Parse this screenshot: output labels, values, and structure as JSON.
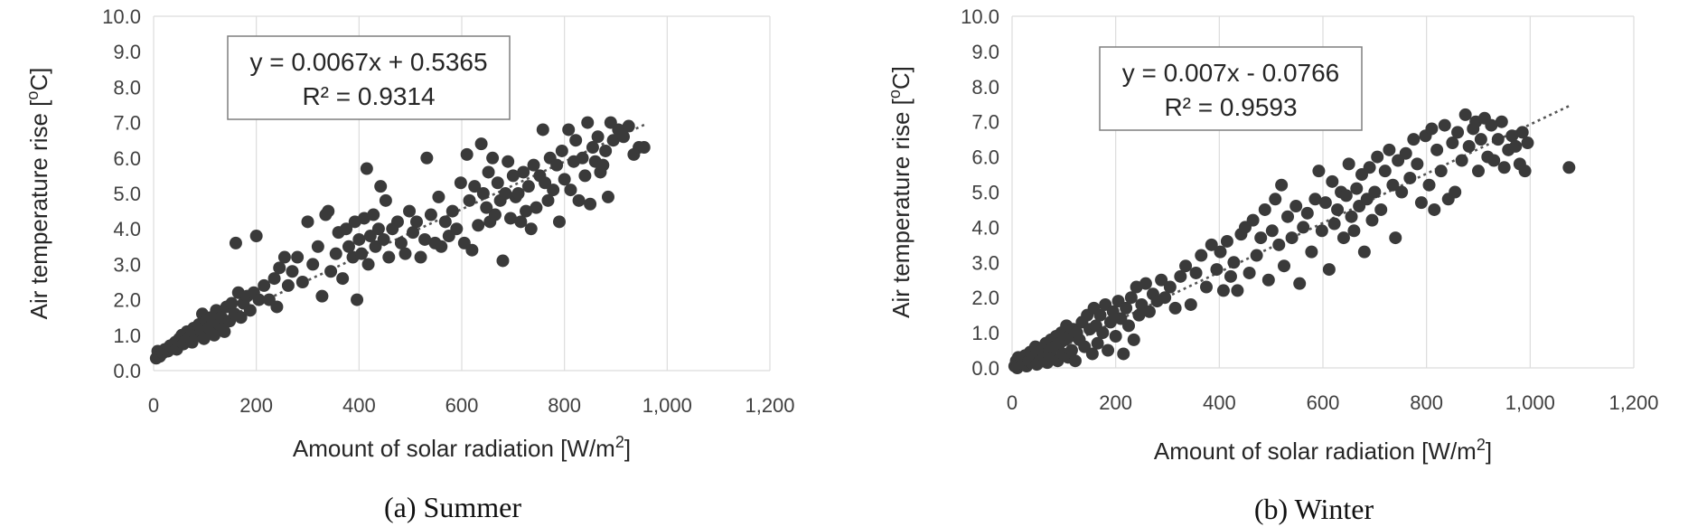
{
  "chart_data": [
    {
      "type": "scatter",
      "caption": "(a) Summer",
      "xlabel": "Amount of solar radiation [W/m2]",
      "ylabel": "Air temperature rise [oC]",
      "xlim": [
        0,
        1200
      ],
      "ylim": [
        0,
        10
      ],
      "xticks": [
        "0",
        "200",
        "400",
        "600",
        "800",
        "1,000",
        "1,200"
      ],
      "yticks": [
        "0.0",
        "1.0",
        "2.0",
        "3.0",
        "4.0",
        "5.0",
        "6.0",
        "7.0",
        "8.0",
        "9.0",
        "10.0"
      ],
      "grid": "vertical",
      "trendline": {
        "type": "linear",
        "slope": 0.0067,
        "intercept": 0.5365,
        "x_range": [
          0,
          960
        ],
        "style": "dotted"
      },
      "equation": "y = 0.0067x + 0.5365",
      "r_squared": "R² = 0.9314",
      "points": [
        [
          5,
          0.35
        ],
        [
          8,
          0.55
        ],
        [
          12,
          0.4
        ],
        [
          18,
          0.5
        ],
        [
          22,
          0.6
        ],
        [
          28,
          0.55
        ],
        [
          32,
          0.7
        ],
        [
          38,
          0.65
        ],
        [
          42,
          0.8
        ],
        [
          45,
          0.6
        ],
        [
          50,
          0.9
        ],
        [
          55,
          1.0
        ],
        [
          58,
          0.75
        ],
        [
          62,
          0.85
        ],
        [
          65,
          1.1
        ],
        [
          70,
          0.95
        ],
        [
          75,
          0.8
        ],
        [
          78,
          1.2
        ],
        [
          82,
          1.0
        ],
        [
          88,
          1.3
        ],
        [
          92,
          1.1
        ],
        [
          95,
          1.6
        ],
        [
          98,
          0.9
        ],
        [
          102,
          1.4
        ],
        [
          108,
          1.2
        ],
        [
          112,
          1.5
        ],
        [
          118,
          1.0
        ],
        [
          122,
          1.7
        ],
        [
          128,
          1.3
        ],
        [
          132,
          1.5
        ],
        [
          138,
          1.1
        ],
        [
          142,
          1.8
        ],
        [
          148,
          1.4
        ],
        [
          152,
          1.9
        ],
        [
          158,
          1.6
        ],
        [
          160,
          3.6
        ],
        [
          165,
          2.2
        ],
        [
          170,
          1.5
        ],
        [
          175,
          1.9
        ],
        [
          182,
          2.1
        ],
        [
          188,
          1.7
        ],
        [
          195,
          2.2
        ],
        [
          200,
          3.8
        ],
        [
          205,
          2.0
        ],
        [
          215,
          2.4
        ],
        [
          225,
          2.0
        ],
        [
          235,
          2.6
        ],
        [
          240,
          1.8
        ],
        [
          245,
          2.9
        ],
        [
          255,
          3.2
        ],
        [
          262,
          2.4
        ],
        [
          270,
          2.8
        ],
        [
          280,
          3.2
        ],
        [
          290,
          2.5
        ],
        [
          300,
          4.2
        ],
        [
          310,
          3.0
        ],
        [
          320,
          3.5
        ],
        [
          328,
          2.1
        ],
        [
          335,
          4.4
        ],
        [
          340,
          4.5
        ],
        [
          345,
          2.8
        ],
        [
          355,
          3.3
        ],
        [
          360,
          3.9
        ],
        [
          368,
          2.6
        ],
        [
          375,
          4.0
        ],
        [
          380,
          3.5
        ],
        [
          388,
          3.2
        ],
        [
          392,
          4.2
        ],
        [
          396,
          2.0
        ],
        [
          400,
          3.7
        ],
        [
          405,
          3.3
        ],
        [
          410,
          4.3
        ],
        [
          415,
          5.7
        ],
        [
          418,
          3.0
        ],
        [
          422,
          3.8
        ],
        [
          428,
          4.4
        ],
        [
          432,
          3.5
        ],
        [
          438,
          4.0
        ],
        [
          442,
          5.2
        ],
        [
          448,
          3.7
        ],
        [
          452,
          4.8
        ],
        [
          458,
          3.2
        ],
        [
          465,
          4.0
        ],
        [
          475,
          4.2
        ],
        [
          482,
          3.6
        ],
        [
          490,
          3.3
        ],
        [
          498,
          4.5
        ],
        [
          505,
          3.9
        ],
        [
          512,
          4.2
        ],
        [
          520,
          3.2
        ],
        [
          528,
          3.7
        ],
        [
          532,
          6.0
        ],
        [
          540,
          4.4
        ],
        [
          548,
          3.6
        ],
        [
          555,
          4.9
        ],
        [
          560,
          3.5
        ],
        [
          568,
          4.2
        ],
        [
          575,
          3.8
        ],
        [
          582,
          4.5
        ],
        [
          590,
          4.0
        ],
        [
          598,
          5.3
        ],
        [
          605,
          3.6
        ],
        [
          610,
          6.1
        ],
        [
          615,
          4.8
        ],
        [
          620,
          3.4
        ],
        [
          625,
          5.2
        ],
        [
          632,
          4.1
        ],
        [
          638,
          6.4
        ],
        [
          642,
          5.0
        ],
        [
          648,
          4.6
        ],
        [
          652,
          5.6
        ],
        [
          655,
          4.2
        ],
        [
          660,
          6.0
        ],
        [
          665,
          4.4
        ],
        [
          670,
          5.3
        ],
        [
          675,
          4.8
        ],
        [
          680,
          3.1
        ],
        [
          685,
          5.0
        ],
        [
          690,
          5.9
        ],
        [
          695,
          4.3
        ],
        [
          700,
          5.5
        ],
        [
          705,
          4.9
        ],
        [
          710,
          5.0
        ],
        [
          715,
          4.2
        ],
        [
          720,
          5.6
        ],
        [
          725,
          4.5
        ],
        [
          730,
          5.2
        ],
        [
          735,
          4.0
        ],
        [
          740,
          5.8
        ],
        [
          745,
          4.6
        ],
        [
          752,
          5.5
        ],
        [
          758,
          6.8
        ],
        [
          762,
          5.3
        ],
        [
          768,
          4.8
        ],
        [
          772,
          6.0
        ],
        [
          778,
          5.1
        ],
        [
          785,
          5.8
        ],
        [
          790,
          4.2
        ],
        [
          795,
          6.2
        ],
        [
          800,
          5.4
        ],
        [
          808,
          6.8
        ],
        [
          812,
          5.1
        ],
        [
          818,
          5.9
        ],
        [
          822,
          6.5
        ],
        [
          828,
          4.8
        ],
        [
          835,
          6.0
        ],
        [
          840,
          5.5
        ],
        [
          845,
          7.0
        ],
        [
          850,
          4.7
        ],
        [
          855,
          6.3
        ],
        [
          860,
          5.9
        ],
        [
          865,
          6.6
        ],
        [
          870,
          5.6
        ],
        [
          875,
          5.8
        ],
        [
          880,
          6.2
        ],
        [
          885,
          4.9
        ],
        [
          890,
          7.0
        ],
        [
          895,
          6.5
        ],
        [
          905,
          6.8
        ],
        [
          915,
          6.6
        ],
        [
          925,
          6.9
        ],
        [
          935,
          6.1
        ],
        [
          945,
          6.3
        ],
        [
          955,
          6.3
        ]
      ]
    },
    {
      "type": "scatter",
      "caption": "(b) Winter",
      "xlabel": "Amount of solar radiation [W/m2]",
      "ylabel": "Air temperature rise [oC]",
      "xlim": [
        0,
        1200
      ],
      "ylim": [
        0,
        10
      ],
      "xticks": [
        "0",
        "200",
        "400",
        "600",
        "800",
        "1,000",
        "1,200"
      ],
      "yticks": [
        "0.0",
        "1.0",
        "2.0",
        "3.0",
        "4.0",
        "5.0",
        "6.0",
        "7.0",
        "8.0",
        "9.0",
        "10.0"
      ],
      "grid": "vertical",
      "trendline": {
        "type": "linear",
        "slope": 0.007,
        "intercept": -0.0766,
        "x_range": [
          0,
          1075
        ],
        "style": "dotted"
      },
      "equation": "y = 0.007x - 0.0766",
      "r_squared": "R² = 0.9593",
      "points": [
        [
          5,
          0.05
        ],
        [
          8,
          0.2
        ],
        [
          10,
          0.0
        ],
        [
          12,
          0.3
        ],
        [
          15,
          0.1
        ],
        [
          18,
          0.25
        ],
        [
          22,
          0.1
        ],
        [
          25,
          0.35
        ],
        [
          28,
          0.05
        ],
        [
          32,
          0.2
        ],
        [
          35,
          0.45
        ],
        [
          38,
          0.15
        ],
        [
          42,
          0.3
        ],
        [
          45,
          0.6
        ],
        [
          48,
          0.1
        ],
        [
          52,
          0.4
        ],
        [
          55,
          0.2
        ],
        [
          58,
          0.5
        ],
        [
          62,
          0.3
        ],
        [
          65,
          0.7
        ],
        [
          68,
          0.15
        ],
        [
          72,
          0.5
        ],
        [
          75,
          0.8
        ],
        [
          78,
          0.3
        ],
        [
          82,
          0.6
        ],
        [
          85,
          0.9
        ],
        [
          88,
          0.2
        ],
        [
          92,
          0.7
        ],
        [
          95,
          1.0
        ],
        [
          98,
          0.4
        ],
        [
          102,
          0.8
        ],
        [
          105,
          1.2
        ],
        [
          108,
          0.3
        ],
        [
          112,
          0.9
        ],
        [
          115,
          0.5
        ],
        [
          118,
          1.1
        ],
        [
          122,
          0.2
        ],
        [
          125,
          1.0
        ],
        [
          130,
          0.8
        ],
        [
          135,
          1.3
        ],
        [
          140,
          0.6
        ],
        [
          145,
          1.5
        ],
        [
          150,
          1.1
        ],
        [
          155,
          0.4
        ],
        [
          158,
          1.7
        ],
        [
          162,
          1.2
        ],
        [
          165,
          0.7
        ],
        [
          170,
          1.5
        ],
        [
          175,
          1.0
        ],
        [
          180,
          1.8
        ],
        [
          185,
          0.5
        ],
        [
          190,
          1.3
        ],
        [
          195,
          1.6
        ],
        [
          200,
          0.9
        ],
        [
          205,
          1.9
        ],
        [
          210,
          1.4
        ],
        [
          215,
          0.4
        ],
        [
          220,
          1.7
        ],
        [
          225,
          1.2
        ],
        [
          230,
          2.0
        ],
        [
          235,
          0.8
        ],
        [
          240,
          2.3
        ],
        [
          245,
          1.5
        ],
        [
          250,
          1.8
        ],
        [
          258,
          2.4
        ],
        [
          265,
          1.6
        ],
        [
          272,
          2.1
        ],
        [
          280,
          1.9
        ],
        [
          288,
          2.5
        ],
        [
          295,
          2.0
        ],
        [
          305,
          2.3
        ],
        [
          315,
          1.7
        ],
        [
          325,
          2.6
        ],
        [
          335,
          2.9
        ],
        [
          345,
          1.8
        ],
        [
          355,
          2.7
        ],
        [
          365,
          3.2
        ],
        [
          375,
          2.3
        ],
        [
          385,
          3.5
        ],
        [
          395,
          2.8
        ],
        [
          402,
          3.3
        ],
        [
          408,
          2.2
        ],
        [
          415,
          3.6
        ],
        [
          422,
          2.6
        ],
        [
          428,
          3.0
        ],
        [
          435,
          2.2
        ],
        [
          442,
          3.8
        ],
        [
          450,
          4.0
        ],
        [
          458,
          2.7
        ],
        [
          465,
          4.2
        ],
        [
          472,
          3.2
        ],
        [
          480,
          3.7
        ],
        [
          488,
          4.5
        ],
        [
          495,
          2.5
        ],
        [
          502,
          3.9
        ],
        [
          508,
          4.8
        ],
        [
          515,
          3.5
        ],
        [
          520,
          5.2
        ],
        [
          525,
          2.9
        ],
        [
          532,
          4.3
        ],
        [
          540,
          3.7
        ],
        [
          548,
          4.6
        ],
        [
          555,
          2.4
        ],
        [
          562,
          4.0
        ],
        [
          570,
          4.4
        ],
        [
          578,
          3.3
        ],
        [
          585,
          4.8
        ],
        [
          592,
          5.6
        ],
        [
          598,
          3.9
        ],
        [
          605,
          4.7
        ],
        [
          612,
          2.8
        ],
        [
          618,
          5.3
        ],
        [
          622,
          4.1
        ],
        [
          628,
          4.5
        ],
        [
          635,
          5.0
        ],
        [
          640,
          3.7
        ],
        [
          645,
          4.9
        ],
        [
          650,
          5.8
        ],
        [
          655,
          4.3
        ],
        [
          660,
          3.9
        ],
        [
          665,
          5.1
        ],
        [
          670,
          4.6
        ],
        [
          675,
          5.5
        ],
        [
          680,
          3.3
        ],
        [
          685,
          4.8
        ],
        [
          690,
          5.7
        ],
        [
          695,
          4.2
        ],
        [
          700,
          5.0
        ],
        [
          705,
          6.0
        ],
        [
          712,
          4.5
        ],
        [
          720,
          5.6
        ],
        [
          728,
          6.2
        ],
        [
          735,
          5.2
        ],
        [
          740,
          3.7
        ],
        [
          745,
          5.9
        ],
        [
          752,
          5.0
        ],
        [
          760,
          6.1
        ],
        [
          768,
          5.4
        ],
        [
          775,
          6.5
        ],
        [
          782,
          5.8
        ],
        [
          790,
          4.7
        ],
        [
          798,
          6.6
        ],
        [
          805,
          5.2
        ],
        [
          810,
          6.8
        ],
        [
          815,
          4.5
        ],
        [
          820,
          6.2
        ],
        [
          828,
          5.6
        ],
        [
          835,
          6.9
        ],
        [
          842,
          4.8
        ],
        [
          850,
          6.4
        ],
        [
          855,
          5.0
        ],
        [
          860,
          6.7
        ],
        [
          868,
          5.9
        ],
        [
          875,
          7.2
        ],
        [
          882,
          6.3
        ],
        [
          890,
          6.8
        ],
        [
          895,
          7.0
        ],
        [
          900,
          5.6
        ],
        [
          905,
          6.5
        ],
        [
          912,
          7.1
        ],
        [
          918,
          6.0
        ],
        [
          925,
          6.9
        ],
        [
          930,
          5.9
        ],
        [
          938,
          6.5
        ],
        [
          945,
          7.0
        ],
        [
          950,
          5.7
        ],
        [
          958,
          6.2
        ],
        [
          965,
          6.6
        ],
        [
          972,
          6.3
        ],
        [
          980,
          5.8
        ],
        [
          985,
          6.7
        ],
        [
          990,
          5.6
        ],
        [
          995,
          6.4
        ],
        [
          1075,
          5.7
        ]
      ]
    }
  ]
}
